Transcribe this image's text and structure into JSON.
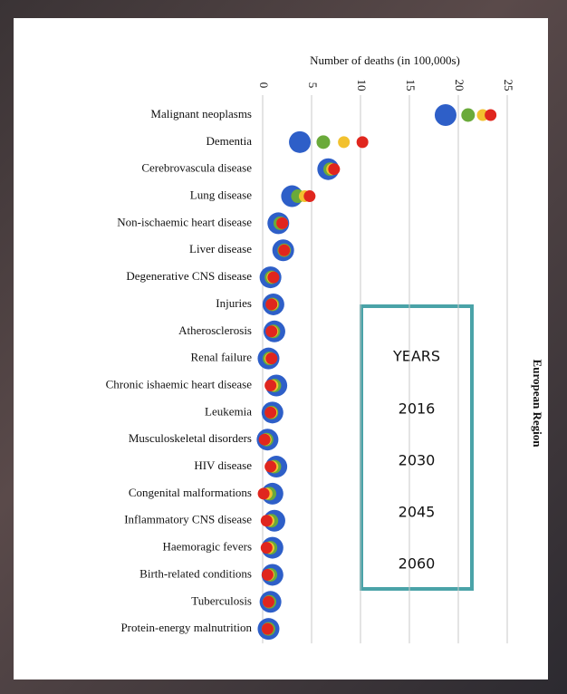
{
  "chart_data": {
    "type": "dot",
    "title": "Number of deaths (in 100,000s)",
    "side_label": "European Region",
    "legend_title": "YEARS",
    "categories": [
      "Malignant neoplasms",
      "Dementia",
      "Cerebrovascula disease",
      "Lung disease",
      "Non-ischaemic heart disease",
      "Liver disease",
      "Degenerative CNS disease",
      "Injuries",
      "Atherosclerosis",
      "Renal failure",
      "Chronic ishaemic heart disease",
      "Leukemia",
      "Musculoskeletal disorders",
      "HIV disease",
      "Congenital malformations",
      "Inflammatory CNS disease",
      "Haemoragic fevers",
      "Birth-related conditions",
      "Tuberculosis",
      "Protein-energy malnutrition"
    ],
    "series": [
      {
        "name": "2016",
        "color": "#2e5fc8",
        "values": [
          18.7,
          3.8,
          6.7,
          3.0,
          1.6,
          2.1,
          0.8,
          1.1,
          1.2,
          0.6,
          1.4,
          1.0,
          0.5,
          1.4,
          1.0,
          1.2,
          1.0,
          1.0,
          0.8,
          0.6
        ]
      },
      {
        "name": "2030",
        "color": "#6aaa3a",
        "values": [
          21.0,
          6.2,
          6.9,
          3.6,
          1.8,
          2.2,
          0.9,
          1.0,
          1.1,
          0.7,
          1.2,
          0.9,
          0.4,
          1.2,
          0.7,
          0.9,
          0.8,
          0.8,
          0.7,
          0.6
        ]
      },
      {
        "name": "2045",
        "color": "#f2c12e",
        "values": [
          22.5,
          8.3,
          7.1,
          4.3,
          2.0,
          2.2,
          1.0,
          1.0,
          1.0,
          0.8,
          1.0,
          0.9,
          0.3,
          1.0,
          0.4,
          0.6,
          0.6,
          0.6,
          0.6,
          0.5
        ]
      },
      {
        "name": "2060",
        "color": "#e0261e",
        "values": [
          23.3,
          10.2,
          7.3,
          4.8,
          2.0,
          2.2,
          1.1,
          0.9,
          0.9,
          0.9,
          0.8,
          0.8,
          0.2,
          0.8,
          0.1,
          0.4,
          0.4,
          0.5,
          0.6,
          0.5
        ]
      }
    ],
    "xlim": [
      0,
      25
    ],
    "xticks": [
      0,
      5,
      10,
      15,
      20,
      25
    ],
    "grid": true
  }
}
